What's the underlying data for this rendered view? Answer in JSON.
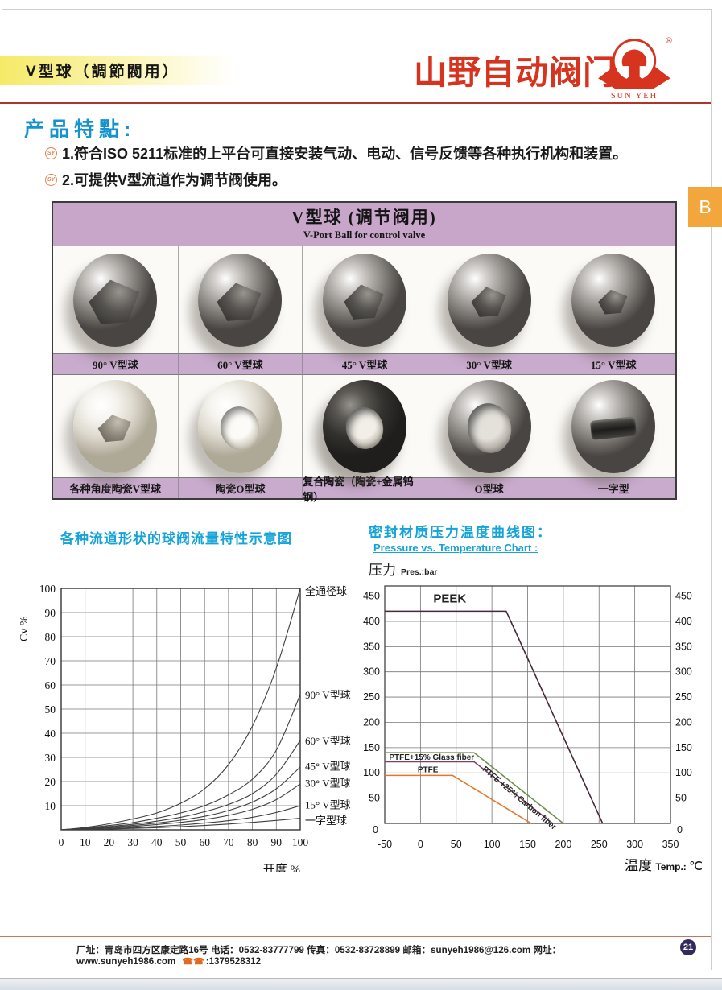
{
  "page": {
    "tab_label": "B",
    "page_number": "21",
    "tab_color": "#f3a63b",
    "badge_color": "#322a5d"
  },
  "header": {
    "title": "V型球（調節閥用）",
    "brand_text": "山野自动阀门",
    "brand_sub": "SUN YEH",
    "registered_mark": "®",
    "brand_color": "#d6341f"
  },
  "features": {
    "heading": "产品特點:",
    "bullet_icon": "SY",
    "items": [
      "1.符合ISO 5211标准的上平台可直接安装气动、电动、信号反馈等各种执行机构和装置。",
      "2.可提供V型流道作为调节阀使用。"
    ]
  },
  "product_table": {
    "title_cn": "V型球 (调节阀用)",
    "title_en": "V-Port Ball for control valve",
    "header_bg": "#c7a6ca",
    "rows": [
      [
        {
          "id": "v90",
          "caption": "90°  V型球",
          "material": "metal",
          "port": "v"
        },
        {
          "id": "v60",
          "caption": "60°  V型球",
          "material": "metal",
          "port": "v"
        },
        {
          "id": "v45",
          "caption": "45°  V型球",
          "material": "metal",
          "port": "v"
        },
        {
          "id": "v30",
          "caption": "30°  V型球",
          "material": "metal",
          "port": "v"
        },
        {
          "id": "v15",
          "caption": "15°  V型球",
          "material": "metal",
          "port": "v"
        }
      ],
      [
        {
          "id": "ceramic-v",
          "caption": "各种角度陶瓷V型球",
          "material": "white",
          "port": "v"
        },
        {
          "id": "ceramic-o",
          "caption": "陶瓷O型球",
          "material": "white",
          "port": "o o-white"
        },
        {
          "id": "composite-o",
          "caption": "复合陶瓷（陶瓷+金属钨钢）",
          "material": "dark",
          "port": "o o-dark"
        },
        {
          "id": "o-ball",
          "caption": "O型球",
          "material": "metal",
          "port": "o o-metal"
        },
        {
          "id": "slot-ball",
          "caption": "一字型",
          "material": "metal",
          "port": "slot"
        }
      ]
    ]
  },
  "chart_data": [
    {
      "type": "line",
      "title": "各种流道形状的球阀流量特性示意图",
      "xlabel": "开度 %",
      "ylabel": "Cv %",
      "xlim": [
        0,
        100
      ],
      "ylim": [
        0,
        100
      ],
      "xticks": [
        0,
        10,
        20,
        30,
        40,
        50,
        60,
        70,
        80,
        90,
        100
      ],
      "yticks": [
        10,
        20,
        30,
        40,
        50,
        60,
        70,
        80,
        90,
        100
      ],
      "grid": true,
      "line_color": "#3f3f3f",
      "x": [
        0,
        10,
        20,
        30,
        40,
        50,
        60,
        70,
        80,
        90,
        100
      ],
      "series": [
        {
          "name": "全通径球",
          "y": [
            0,
            1,
            2.5,
            4.5,
            7,
            11,
            17,
            27,
            43,
            67,
            100
          ]
        },
        {
          "name": "90° V型球",
          "y": [
            0,
            0.8,
            1.8,
            3,
            4.8,
            7,
            10,
            14.5,
            21,
            33,
            56
          ]
        },
        {
          "name": "60° V型球",
          "y": [
            0,
            0.6,
            1.4,
            2.3,
            3.6,
            5.2,
            7.5,
            10.5,
            15,
            23,
            37
          ]
        },
        {
          "name": "45° V型球",
          "y": [
            0,
            0.5,
            1.1,
            1.8,
            2.8,
            4,
            5.6,
            8,
            11.5,
            17,
            26
          ]
        },
        {
          "name": "30° V型球",
          "y": [
            0,
            0.4,
            0.8,
            1.4,
            2.2,
            3.1,
            4.3,
            6,
            8.5,
            12.5,
            19
          ]
        },
        {
          "name": "15° V型球",
          "y": [
            0,
            0.2,
            0.5,
            0.9,
            1.4,
            2,
            2.8,
            3.8,
            5.2,
            7.2,
            10
          ]
        },
        {
          "name": "一字型球",
          "y": [
            0,
            0.1,
            0.3,
            0.6,
            0.9,
            1.3,
            1.8,
            2.4,
            3.1,
            3.9,
            4.8
          ]
        }
      ],
      "curve_labels": [
        {
          "text": "全通径球",
          "y": 99
        },
        {
          "text": "90°  V型球",
          "y": 56
        },
        {
          "text": "60°  V型球",
          "y": 37
        },
        {
          "text": "45°  V型球",
          "y": 26.5
        },
        {
          "text": "30°  V型球",
          "y": 19.5
        },
        {
          "text": "15°  V型球",
          "y": 10.5
        },
        {
          "text": "一字型球",
          "y": 4
        }
      ]
    },
    {
      "type": "line",
      "title": "密封材质压力温度曲线图：",
      "subtitle": "Pressure  vs. Temperature Chart :",
      "ylabel_cn": "压力",
      "ylabel_en": "Pres.:bar",
      "xlabel_cn": "温度",
      "xlabel_en": "Temp.:",
      "xlabel_unit": "℃",
      "xlim": [
        -50,
        350
      ],
      "ylim": [
        0,
        470
      ],
      "xticks": [
        -50,
        0,
        50,
        100,
        150,
        200,
        250,
        300,
        350
      ],
      "yticks": [
        50,
        100,
        150,
        200,
        250,
        300,
        350,
        400,
        450
      ],
      "origin_label": "0",
      "grid": true,
      "series": [
        {
          "name": "PEEK",
          "color": "#46283a",
          "points": [
            [
              -50,
              420
            ],
            [
              120,
              420
            ],
            [
              255,
              0
            ]
          ],
          "label": {
            "text": "PEEK",
            "x": 18,
            "y": 437,
            "rotate": 0,
            "size": 15
          }
        },
        {
          "name": "PTFE+15% Glass fiber",
          "color": "#6f8d4a",
          "points": [
            [
              -50,
              140
            ],
            [
              75,
              140
            ],
            [
              200,
              0
            ]
          ],
          "label": {
            "text": "PTFE+15% Glass fiber",
            "x": -44,
            "y": 126,
            "rotate": 0,
            "size": 10
          }
        },
        {
          "name": "PTFE +25% Carbon fiber",
          "color": "#7c4260",
          "points": [
            [
              -50,
              122
            ],
            [
              75,
              122
            ],
            [
              185,
              0
            ]
          ],
          "label": {
            "text": "PTFE +25% Carbon fiber",
            "x": 86,
            "y": 106,
            "rotate": 40,
            "size": 10
          }
        },
        {
          "name": "PTFE",
          "color": "#e4762b",
          "points": [
            [
              -50,
              95
            ],
            [
              45,
              95
            ],
            [
              155,
              0
            ]
          ],
          "label": {
            "text": "PTFE",
            "x": -4,
            "y": 101,
            "rotate": 0,
            "size": 10
          }
        }
      ]
    }
  ],
  "footer": {
    "info": "厂址：青岛市四方区康定路16号  电话：0532-83777799  传真：0532-83728899  邮箱：sunyeh1986@126.com  网址：www.sunyeh1986.com",
    "phone_icons": "☎☎",
    "mobile_display": ":1379528312",
    "mobile": "1379528312"
  }
}
